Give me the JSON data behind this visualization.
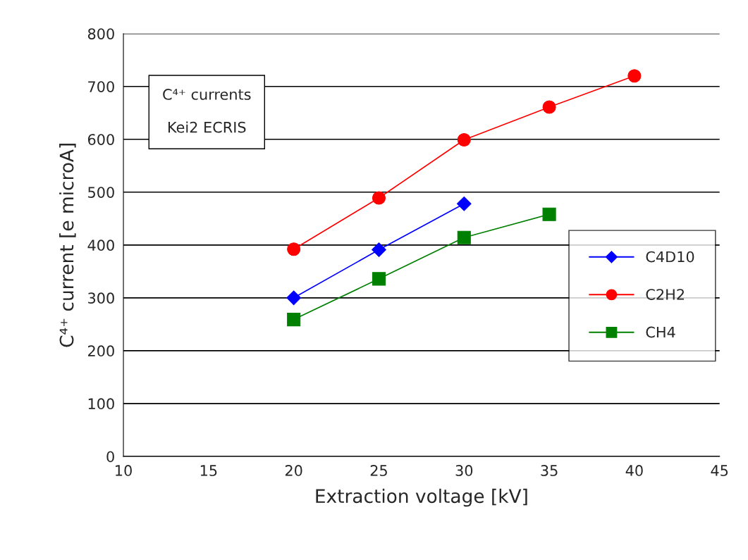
{
  "chart_data": {
    "type": "line",
    "xlabel": "Extraction voltage [kV]",
    "ylabel": "C⁴⁺ current [e microA]",
    "x": [
      20,
      25,
      30,
      35,
      40
    ],
    "series": [
      {
        "name": "C4D10",
        "color": "#0000ff",
        "marker": "diamond",
        "values": [
          300,
          391,
          478,
          null,
          null
        ]
      },
      {
        "name": "C2H2",
        "color": "#ff0000",
        "marker": "circle",
        "values": [
          392,
          489,
          599,
          661,
          720
        ]
      },
      {
        "name": "CH4",
        "color": "#008000",
        "marker": "square",
        "values": [
          259,
          336,
          414,
          458,
          null
        ]
      }
    ],
    "xlim": [
      10,
      45
    ],
    "xticks": [
      10,
      15,
      20,
      25,
      30,
      35,
      40,
      45
    ],
    "ylim": [
      0,
      800
    ],
    "yticks": [
      0,
      100,
      200,
      300,
      400,
      500,
      600,
      700,
      800
    ],
    "grid": "y",
    "legend": "right",
    "line_style": "solid",
    "annotations": [
      "C⁴⁺ currents\n\nKei2 ECRIS"
    ]
  }
}
